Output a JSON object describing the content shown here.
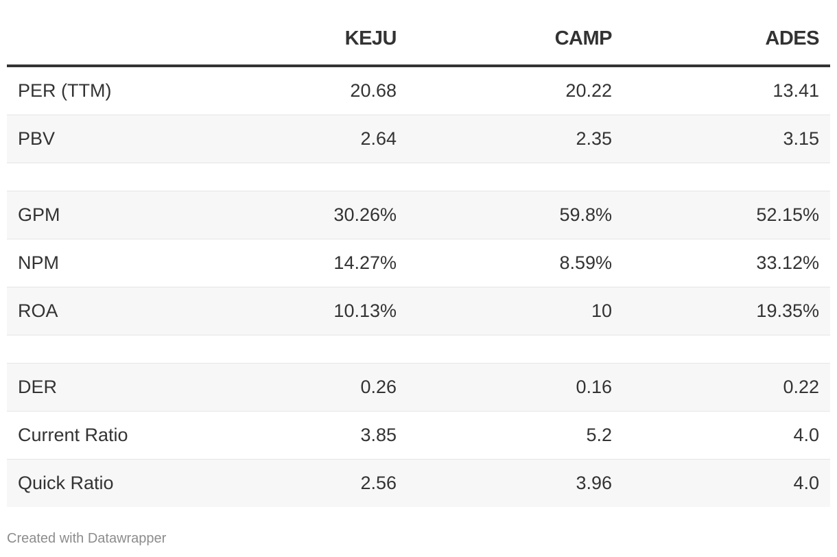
{
  "chart_data": {
    "type": "table",
    "columns": [
      "",
      "KEJU",
      "CAMP",
      "ADES"
    ],
    "rows": [
      {
        "label": "PER (TTM)",
        "values": [
          "20.68",
          "20.22",
          "13.41"
        ]
      },
      {
        "label": "PBV",
        "values": [
          "2.64",
          "2.35",
          "3.15"
        ]
      },
      {
        "label": "",
        "values": [
          "",
          "",
          ""
        ]
      },
      {
        "label": "GPM",
        "values": [
          "30.26%",
          "59.8%",
          "52.15%"
        ]
      },
      {
        "label": "NPM",
        "values": [
          "14.27%",
          "8.59%",
          "33.12%"
        ]
      },
      {
        "label": "ROA",
        "values": [
          "10.13%",
          "10",
          "19.35%"
        ]
      },
      {
        "label": "",
        "values": [
          "",
          "",
          ""
        ]
      },
      {
        "label": "DER",
        "values": [
          "0.26",
          "0.16",
          "0.22"
        ]
      },
      {
        "label": "Current Ratio",
        "values": [
          "3.85",
          "5.2",
          "4.0"
        ]
      },
      {
        "label": "Quick Ratio",
        "values": [
          "2.56",
          "3.96",
          "4.0"
        ]
      }
    ]
  },
  "footer": "Created with Datawrapper",
  "colors": {
    "text": "#333333",
    "header_rule": "#333333",
    "row_alt": "#f7f7f7",
    "divider": "#e5e5e5",
    "footer_text": "#8c8c8c"
  }
}
